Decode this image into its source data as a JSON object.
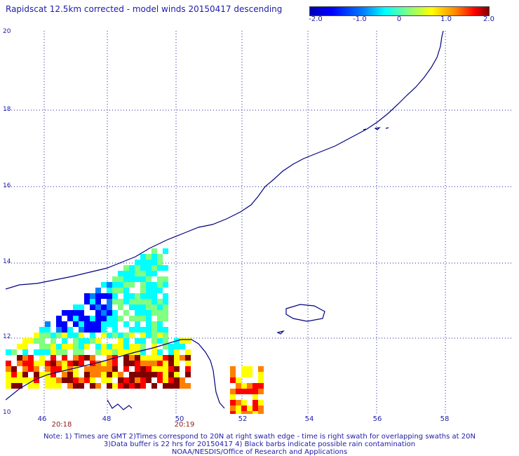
{
  "title": "Rapidscat 12.5km corrected - model winds 20150417 descending",
  "colorbar": {
    "ticks": [
      "-2.0",
      "-1.0",
      "0",
      "1.0",
      "2.0"
    ],
    "colors": [
      "#0000b4",
      "#0000ff",
      "#0080ff",
      "#00ffff",
      "#80ff80",
      "#ffff00",
      "#ff8000",
      "#ff0000",
      "#800000"
    ]
  },
  "axes": {
    "lat_labels": [
      "20",
      "18",
      "16",
      "14",
      "12",
      "10"
    ],
    "lon_labels": [
      "46",
      "48",
      "50",
      "52",
      "54",
      "56",
      "58"
    ]
  },
  "times": [
    "20:18",
    "20:19"
  ],
  "notes": [
    "Note: 1) Times are GMT 2)Times correspond to 20N at right swath edge - time is right swath for overlapping swaths at 20N",
    "3)Data buffer is 22 hrs for 20150417 4) Black barbs indicate possible rain contamination",
    "NOAA/NESDIS/Office of Research and Applications"
  ],
  "colors": {
    "coast": "#000080",
    "grid": "#1c1ca8"
  }
}
